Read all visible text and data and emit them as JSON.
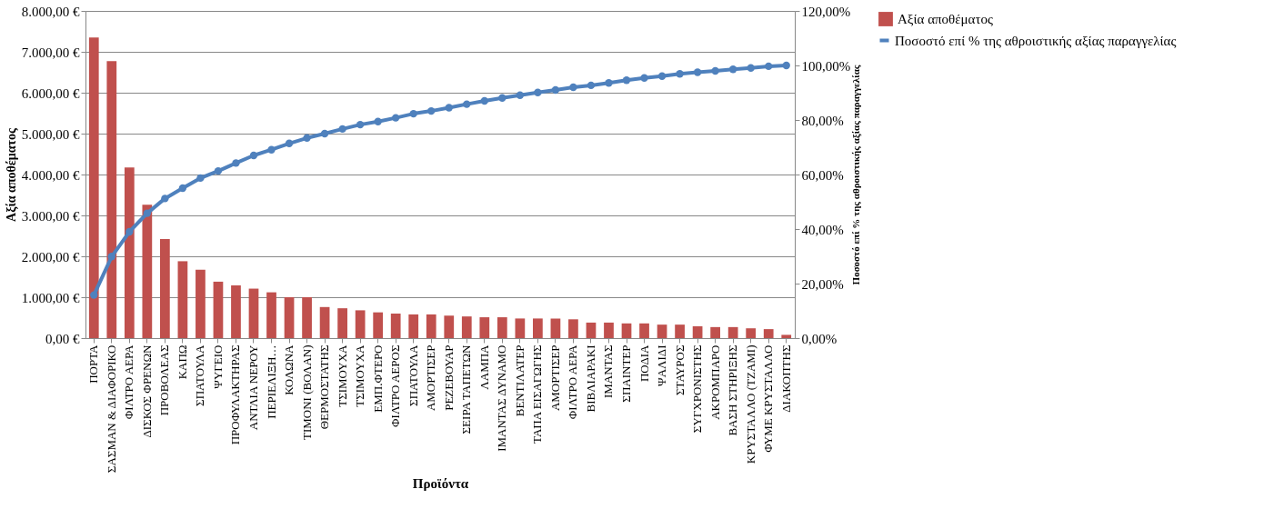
{
  "chart_data": {
    "type": "bar",
    "xlabel": "Προϊόντα",
    "ylabel": "Αξία αποθέματος",
    "y2label": "Ποσοστό επί % της αθροιστικής αξίας παραγγελίας",
    "categories": [
      "ΠΟΡΤΑ",
      "ΣΑΣΜΑΝ & ΔΙΑΦΟΡΙΚΟ",
      "ΦΙΛΤΡΟ ΑΕΡΑ",
      "ΔΙΣΚΟΣ ΦΡΕΝΩΝ",
      "ΠΡΟΒΟΛΕΑΣ",
      "ΚΑΠΩ",
      "ΣΠΑΤΟΥΛΑ",
      "ΨΥΓΕΙΟ",
      "ΠΡΟΦΥΛΑΚΤΗΡΑΣ",
      "ΑΝΤΛΙΑ ΝΕΡΟΥ",
      "ΠΕΡΙΕΛΙΞΗ…",
      "ΚΟΛΩΝΑ",
      "ΤΙΜΟΝΙ (ΒΟΛΑΝ)",
      "ΘΕΡΜΟΣΤΑΤΗΣ",
      "ΤΣΙΜΟΥΧΑ",
      "ΤΣΙΜΟΥΧΑ",
      "ΕΜΠ.ΦΤΕΡΟ",
      "ΦΙΛΤΡΟ ΑΕΡΟΣ",
      "ΣΠΑΤΟΥΛΑ",
      "ΑΜΟΡΤΙΣΕΡ",
      "ΡΕΖΕΒΟΥΑΡ",
      "ΣΕΙΡΑ ΤΑΠΕΤΩΝ",
      "ΛΑΜΠΑ",
      "ΙΜΑΝΤΑΣ  ΔΥΝΑΜΟ",
      "ΒΕΝΤΙΛΑΤΕΡ",
      "ΤΑΠΑ ΕΙΣΑΓΩΓΗΣ",
      "ΑΜΟΡΤΙΣΕΡ",
      "ΦΙΛΤΡΟ ΑΕΡΑ",
      "ΒΙΒΛΙΑΡΑΚΙ",
      "ΙΜΑΝΤΑΣ",
      "ΣΠΑΙΝΤΕΡ",
      "ΠΟΔΙΑ",
      "ΨΑΛΙΔΙ",
      "ΣΤΑΥΡΟΣ",
      "ΣΥΓΧΡΟΝΙΣΤΗΣ",
      "ΑΚΡΟΜΠΑΡΟ",
      "ΒΑΣΗ ΣΤΗΡΙΞΗΣ",
      "ΚΡΥΣΤΑΛΛΟ (ΤΖΑΜΙ)",
      "ΦΥΜΕ ΚΡΥΣΤΑΛΛΟ",
      "ΔΙΑΚΟΠΤΗΣ"
    ],
    "series": [
      {
        "name": "Αξία αποθέματος",
        "color": "#c0504d",
        "values": [
          7350,
          6770,
          4170,
          3260,
          2420,
          1880,
          1670,
          1380,
          1290,
          1210,
          1120,
          1000,
          1000,
          760,
          730,
          680,
          630,
          600,
          580,
          580,
          550,
          530,
          510,
          510,
          480,
          480,
          480,
          460,
          380,
          380,
          360,
          360,
          330,
          330,
          290,
          270,
          270,
          240,
          220,
          80
        ]
      },
      {
        "name": "Ποσοστό επί % της αθροιστικής αξίας παραγγελίας",
        "type": "line",
        "axis": "y2",
        "color": "#4f81bd",
        "marker": "circle",
        "values": [
          15.8,
          29.9,
          39.0,
          45.8,
          51.2,
          55.0,
          58.7,
          61.3,
          64.2,
          67.0,
          69.1,
          71.4,
          73.4,
          75.0,
          76.7,
          78.3,
          79.4,
          80.8,
          82.3,
          83.3,
          84.5,
          85.8,
          87.0,
          88.1,
          89.1,
          90.1,
          91.0,
          92.0,
          92.7,
          93.6,
          94.6,
          95.4,
          96.1,
          96.9,
          97.5,
          98.0,
          98.6,
          99.1,
          99.7,
          100
        ]
      }
    ],
    "ylim": [
      0,
      8000
    ],
    "yticks": [
      {
        "value": 0,
        "label": "0,00 €"
      },
      {
        "value": 1000,
        "label": "1.000,00 €"
      },
      {
        "value": 2000,
        "label": "2.000,00 €"
      },
      {
        "value": 3000,
        "label": "3.000,00 €"
      },
      {
        "value": 4000,
        "label": "4.000,00 €"
      },
      {
        "value": 5000,
        "label": "5.000,00 €"
      },
      {
        "value": 6000,
        "label": "6.000,00 €"
      },
      {
        "value": 7000,
        "label": "7.000,00 €"
      },
      {
        "value": 8000,
        "label": "8.000,00 €"
      }
    ],
    "y2lim": [
      0,
      120
    ],
    "y2ticks": [
      {
        "value": 0,
        "label": "0,00%"
      },
      {
        "value": 20,
        "label": "20,00%"
      },
      {
        "value": 40,
        "label": "40,00%"
      },
      {
        "value": 60,
        "label": "60,00%"
      },
      {
        "value": 80,
        "label": "80,00%"
      },
      {
        "value": 100,
        "label": "100,00%"
      },
      {
        "value": 120,
        "label": "120,00%"
      }
    ],
    "grid": "y",
    "legend": "right"
  }
}
